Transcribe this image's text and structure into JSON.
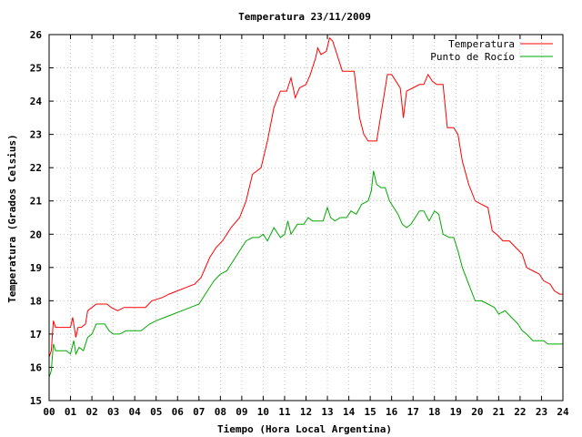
{
  "chart_data": {
    "type": "line",
    "title": "Temperatura 23/11/2009",
    "xlabel": "Tiempo (Hora Local Argentina)",
    "ylabel": "Temperatura (Grados Celsius)",
    "xlim": [
      0,
      24
    ],
    "ylim": [
      15,
      26
    ],
    "x_ticks": [
      "00",
      "01",
      "02",
      "03",
      "04",
      "05",
      "06",
      "07",
      "08",
      "09",
      "10",
      "11",
      "12",
      "13",
      "14",
      "15",
      "16",
      "17",
      "18",
      "19",
      "20",
      "21",
      "22",
      "23",
      "24"
    ],
    "y_ticks": [
      "15",
      "16",
      "17",
      "18",
      "19",
      "20",
      "21",
      "22",
      "23",
      "24",
      "25",
      "26"
    ],
    "grid": true,
    "legend_position": "top-right",
    "series": [
      {
        "name": "Temperatura",
        "color": "#ff0000",
        "points": [
          [
            0.0,
            16.3
          ],
          [
            0.1,
            16.5
          ],
          [
            0.2,
            17.4
          ],
          [
            0.3,
            17.2
          ],
          [
            0.5,
            17.2
          ],
          [
            0.7,
            17.2
          ],
          [
            1.0,
            17.2
          ],
          [
            1.1,
            17.5
          ],
          [
            1.25,
            16.9
          ],
          [
            1.35,
            17.2
          ],
          [
            1.5,
            17.2
          ],
          [
            1.7,
            17.3
          ],
          [
            1.8,
            17.7
          ],
          [
            2.0,
            17.8
          ],
          [
            2.2,
            17.9
          ],
          [
            2.5,
            17.9
          ],
          [
            2.7,
            17.9
          ],
          [
            2.9,
            17.8
          ],
          [
            3.2,
            17.7
          ],
          [
            3.5,
            17.8
          ],
          [
            4.0,
            17.8
          ],
          [
            4.5,
            17.8
          ],
          [
            4.8,
            18.0
          ],
          [
            5.3,
            18.1
          ],
          [
            5.6,
            18.2
          ],
          [
            6.0,
            18.3
          ],
          [
            6.4,
            18.4
          ],
          [
            6.8,
            18.5
          ],
          [
            7.1,
            18.7
          ],
          [
            7.5,
            19.3
          ],
          [
            7.8,
            19.6
          ],
          [
            8.1,
            19.8
          ],
          [
            8.5,
            20.2
          ],
          [
            8.9,
            20.5
          ],
          [
            9.2,
            21.0
          ],
          [
            9.5,
            21.8
          ],
          [
            9.9,
            22.0
          ],
          [
            10.2,
            22.8
          ],
          [
            10.5,
            23.8
          ],
          [
            10.8,
            24.3
          ],
          [
            11.1,
            24.3
          ],
          [
            11.3,
            24.7
          ],
          [
            11.5,
            24.1
          ],
          [
            11.7,
            24.4
          ],
          [
            12.0,
            24.5
          ],
          [
            12.2,
            24.8
          ],
          [
            12.45,
            25.3
          ],
          [
            12.55,
            25.6
          ],
          [
            12.7,
            25.4
          ],
          [
            12.95,
            25.5
          ],
          [
            13.1,
            25.9
          ],
          [
            13.25,
            25.8
          ],
          [
            13.5,
            25.3
          ],
          [
            13.7,
            24.9
          ],
          [
            14.0,
            24.9
          ],
          [
            14.25,
            24.9
          ],
          [
            14.5,
            23.5
          ],
          [
            14.7,
            23.0
          ],
          [
            14.9,
            22.8
          ],
          [
            15.1,
            22.8
          ],
          [
            15.3,
            22.8
          ],
          [
            15.6,
            24.0
          ],
          [
            15.8,
            24.8
          ],
          [
            16.0,
            24.8
          ],
          [
            16.2,
            24.6
          ],
          [
            16.4,
            24.4
          ],
          [
            16.55,
            23.5
          ],
          [
            16.7,
            24.3
          ],
          [
            17.0,
            24.4
          ],
          [
            17.3,
            24.5
          ],
          [
            17.5,
            24.5
          ],
          [
            17.7,
            24.8
          ],
          [
            17.9,
            24.6
          ],
          [
            18.1,
            24.5
          ],
          [
            18.4,
            24.5
          ],
          [
            18.6,
            23.2
          ],
          [
            18.9,
            23.2
          ],
          [
            19.1,
            23.0
          ],
          [
            19.3,
            22.2
          ],
          [
            19.6,
            21.5
          ],
          [
            19.9,
            21.0
          ],
          [
            20.2,
            20.9
          ],
          [
            20.5,
            20.8
          ],
          [
            20.7,
            20.1
          ],
          [
            20.9,
            20.0
          ],
          [
            21.2,
            19.8
          ],
          [
            21.5,
            19.8
          ],
          [
            21.8,
            19.6
          ],
          [
            22.1,
            19.4
          ],
          [
            22.3,
            19.0
          ],
          [
            22.6,
            18.9
          ],
          [
            22.9,
            18.8
          ],
          [
            23.1,
            18.6
          ],
          [
            23.4,
            18.5
          ],
          [
            23.6,
            18.3
          ],
          [
            23.85,
            18.2
          ],
          [
            24.0,
            18.2
          ]
        ]
      },
      {
        "name": "Punto de Rocío",
        "color": "#00aa00",
        "points": [
          [
            0.0,
            15.7
          ],
          [
            0.1,
            15.9
          ],
          [
            0.2,
            16.7
          ],
          [
            0.3,
            16.5
          ],
          [
            0.5,
            16.5
          ],
          [
            0.8,
            16.5
          ],
          [
            1.0,
            16.4
          ],
          [
            1.15,
            16.8
          ],
          [
            1.25,
            16.4
          ],
          [
            1.4,
            16.6
          ],
          [
            1.6,
            16.5
          ],
          [
            1.8,
            16.9
          ],
          [
            2.0,
            17.0
          ],
          [
            2.2,
            17.3
          ],
          [
            2.4,
            17.3
          ],
          [
            2.6,
            17.3
          ],
          [
            2.8,
            17.1
          ],
          [
            3.0,
            17.0
          ],
          [
            3.3,
            17.0
          ],
          [
            3.6,
            17.1
          ],
          [
            4.0,
            17.1
          ],
          [
            4.3,
            17.1
          ],
          [
            4.7,
            17.3
          ],
          [
            5.0,
            17.4
          ],
          [
            5.4,
            17.5
          ],
          [
            5.8,
            17.6
          ],
          [
            6.2,
            17.7
          ],
          [
            6.6,
            17.8
          ],
          [
            7.0,
            17.9
          ],
          [
            7.4,
            18.3
          ],
          [
            7.7,
            18.6
          ],
          [
            8.0,
            18.8
          ],
          [
            8.3,
            18.9
          ],
          [
            8.6,
            19.2
          ],
          [
            8.9,
            19.5
          ],
          [
            9.2,
            19.8
          ],
          [
            9.5,
            19.9
          ],
          [
            9.8,
            19.9
          ],
          [
            10.0,
            20.0
          ],
          [
            10.2,
            19.8
          ],
          [
            10.5,
            20.2
          ],
          [
            10.8,
            19.9
          ],
          [
            11.0,
            20.0
          ],
          [
            11.15,
            20.4
          ],
          [
            11.3,
            20.0
          ],
          [
            11.6,
            20.3
          ],
          [
            11.9,
            20.3
          ],
          [
            12.1,
            20.5
          ],
          [
            12.3,
            20.4
          ],
          [
            12.5,
            20.4
          ],
          [
            12.8,
            20.4
          ],
          [
            13.0,
            20.8
          ],
          [
            13.15,
            20.5
          ],
          [
            13.35,
            20.4
          ],
          [
            13.6,
            20.5
          ],
          [
            13.9,
            20.5
          ],
          [
            14.1,
            20.7
          ],
          [
            14.35,
            20.6
          ],
          [
            14.6,
            20.9
          ],
          [
            14.9,
            21.0
          ],
          [
            15.05,
            21.3
          ],
          [
            15.15,
            21.9
          ],
          [
            15.3,
            21.5
          ],
          [
            15.5,
            21.4
          ],
          [
            15.7,
            21.4
          ],
          [
            15.9,
            21.0
          ],
          [
            16.1,
            20.8
          ],
          [
            16.3,
            20.6
          ],
          [
            16.5,
            20.3
          ],
          [
            16.7,
            20.2
          ],
          [
            16.9,
            20.3
          ],
          [
            17.1,
            20.5
          ],
          [
            17.3,
            20.7
          ],
          [
            17.5,
            20.7
          ],
          [
            17.75,
            20.4
          ],
          [
            18.0,
            20.7
          ],
          [
            18.2,
            20.6
          ],
          [
            18.4,
            20.0
          ],
          [
            18.7,
            19.9
          ],
          [
            18.9,
            19.9
          ],
          [
            19.1,
            19.5
          ],
          [
            19.3,
            19.0
          ],
          [
            19.6,
            18.5
          ],
          [
            19.9,
            18.0
          ],
          [
            20.2,
            18.0
          ],
          [
            20.5,
            17.9
          ],
          [
            20.8,
            17.8
          ],
          [
            21.0,
            17.6
          ],
          [
            21.3,
            17.7
          ],
          [
            21.6,
            17.5
          ],
          [
            21.9,
            17.3
          ],
          [
            22.1,
            17.1
          ],
          [
            22.3,
            17.0
          ],
          [
            22.6,
            16.8
          ],
          [
            22.9,
            16.8
          ],
          [
            23.1,
            16.8
          ],
          [
            23.3,
            16.7
          ],
          [
            23.5,
            16.7
          ],
          [
            23.7,
            16.7
          ],
          [
            23.85,
            16.7
          ],
          [
            24.0,
            16.7
          ]
        ]
      }
    ]
  }
}
